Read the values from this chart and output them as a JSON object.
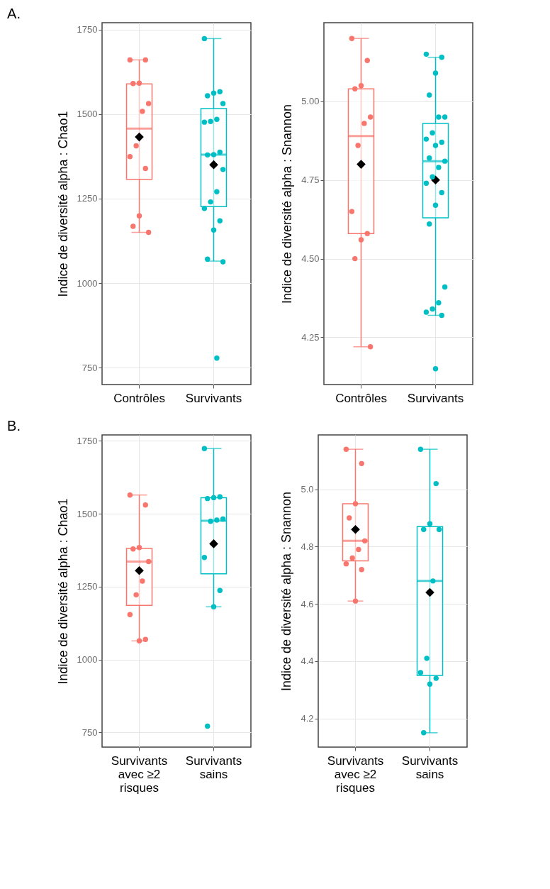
{
  "chart_data": [
    {
      "type": "box",
      "title": "A.",
      "ylabel": "Indice de diversité alpha : Chao1",
      "categories": [
        "Contrôles",
        "Survivants"
      ],
      "ylim": [
        700,
        1770
      ],
      "yticks": [
        750,
        1000,
        1250,
        1500,
        1750
      ],
      "grid": true,
      "marker": "circle",
      "series": [
        {
          "type": "box",
          "colors": [
            "#f8766d",
            "#00bfc4"
          ],
          "boxes": [
            {
              "low": 1150,
              "q1": 1307,
              "median": 1457,
              "q3": 1589,
              "high": 1660,
              "mean": 1432
            },
            {
              "low": 1065,
              "q1": 1226,
              "median": 1380,
              "q3": 1516,
              "high": 1723,
              "mean": 1350
            }
          ]
        },
        {
          "type": "scatter",
          "color": "#f8766d",
          "x": [
            "Contrôles",
            "Contrôles",
            "Contrôles",
            "Contrôles",
            "Contrôles",
            "Contrôles",
            "Contrôles",
            "Contrôles",
            "Contrôles",
            "Contrôles",
            "Contrôles",
            "Contrôles"
          ],
          "values": [
            1660,
            1660,
            1591,
            1590,
            1531,
            1508,
            1406,
            1374,
            1339,
            1199,
            1168,
            1150
          ]
        },
        {
          "type": "scatter",
          "color": "#00bfc4",
          "x": [
            "Survivants",
            "Survivants",
            "Survivants",
            "Survivants",
            "Survivants",
            "Survivants",
            "Survivants",
            "Survivants",
            "Survivants",
            "Survivants",
            "Survivants",
            "Survivants",
            "Survivants",
            "Survivants",
            "Survivants",
            "Survivants",
            "Survivants",
            "Survivants",
            "Survivants",
            "Survivants"
          ],
          "values": [
            1723,
            1566,
            1562,
            1554,
            1531,
            1484,
            1478,
            1476,
            1387,
            1380,
            1379,
            1336,
            1270,
            1240,
            1221,
            1184,
            1157,
            1071,
            1063,
            778
          ]
        }
      ]
    },
    {
      "type": "box",
      "ylabel": "Indice de diversité alpha : Snannon",
      "categories": [
        "Contrôles",
        "Survivants"
      ],
      "ylim": [
        4.1,
        5.25
      ],
      "yticks": [
        {
          "value": 4.25,
          "label": "4.25"
        },
        {
          "value": 4.5,
          "label": "4.50"
        },
        {
          "value": 4.75,
          "label": "4.75"
        },
        {
          "value": 5,
          "label": "5.00"
        }
      ],
      "grid": true,
      "marker": "circle",
      "series": [
        {
          "type": "box",
          "colors": [
            "#f8766d",
            "#00bfc4"
          ],
          "boxes": [
            {
              "low": 4.22,
              "q1": 4.58,
              "median": 4.89,
              "q3": 5.04,
              "high": 5.2,
              "mean": 4.8
            },
            {
              "low": 4.32,
              "q1": 4.63,
              "median": 4.81,
              "q3": 4.93,
              "high": 5.14,
              "mean": 4.75
            }
          ]
        },
        {
          "type": "scatter",
          "color": "#f8766d",
          "x": [
            "Contrôles",
            "Contrôles",
            "Contrôles",
            "Contrôles",
            "Contrôles",
            "Contrôles",
            "Contrôles",
            "Contrôles",
            "Contrôles",
            "Contrôles",
            "Contrôles",
            "Contrôles"
          ],
          "values": [
            5.2,
            5.13,
            5.05,
            5.04,
            4.95,
            4.93,
            4.86,
            4.65,
            4.58,
            4.56,
            4.5,
            4.22
          ]
        },
        {
          "type": "scatter",
          "color": "#00bfc4",
          "x": [
            "Survivants",
            "Survivants",
            "Survivants",
            "Survivants",
            "Survivants",
            "Survivants",
            "Survivants",
            "Survivants",
            "Survivants",
            "Survivants",
            "Survivants",
            "Survivants",
            "Survivants",
            "Survivants",
            "Survivants",
            "Survivants",
            "Survivants",
            "Survivants",
            "Survivants",
            "Survivants",
            "Survivants",
            "Survivants",
            "Survivants",
            "Survivants"
          ],
          "values": [
            5.15,
            5.14,
            5.09,
            5.02,
            4.95,
            4.95,
            4.9,
            4.88,
            4.87,
            4.86,
            4.82,
            4.81,
            4.79,
            4.76,
            4.74,
            4.71,
            4.67,
            4.61,
            4.41,
            4.36,
            4.34,
            4.33,
            4.32,
            4.15
          ]
        }
      ]
    },
    {
      "type": "box",
      "title": "B.",
      "ylabel": "Indice de diversité alpha : Chao1",
      "categories": [
        "Survivants avec ≥2 risques",
        "Survivants sains"
      ],
      "ylim": [
        700,
        1770
      ],
      "yticks": [
        750,
        1000,
        1250,
        1500,
        1750
      ],
      "grid": true,
      "marker": "circle",
      "series": [
        {
          "type": "box",
          "colors": [
            "#f8766d",
            "#00bfc4"
          ],
          "boxes": [
            {
              "low": 1064,
              "q1": 1186,
              "median": 1336,
              "q3": 1381,
              "high": 1564,
              "mean": 1305
            },
            {
              "low": 1181,
              "q1": 1294,
              "median": 1476,
              "q3": 1555,
              "high": 1723,
              "mean": 1397
            }
          ]
        },
        {
          "type": "scatter",
          "color": "#f8766d",
          "x": [
            "Survivants avec ≥2 risques",
            "Survivants avec ≥2 risques",
            "Survivants avec ≥2 risques",
            "Survivants avec ≥2 risques",
            "Survivants avec ≥2 risques",
            "Survivants avec ≥2 risques",
            "Survivants avec ≥2 risques",
            "Survivants avec ≥2 risques",
            "Survivants avec ≥2 risques",
            "Survivants avec ≥2 risques"
          ],
          "values": [
            1564,
            1530,
            1384,
            1379,
            1336,
            1269,
            1222,
            1154,
            1069,
            1064
          ]
        },
        {
          "type": "scatter",
          "color": "#00bfc4",
          "x": [
            "Survivants sains",
            "Survivants sains",
            "Survivants sains",
            "Survivants sains",
            "Survivants sains",
            "Survivants sains",
            "Survivants sains",
            "Survivants sains",
            "Survivants sains",
            "Survivants sains",
            "Survivants sains"
          ],
          "values": [
            1723,
            1558,
            1555,
            1552,
            1482,
            1478,
            1474,
            1350,
            1237,
            1181,
            772
          ]
        }
      ]
    },
    {
      "type": "box",
      "ylabel": "Indice de diversité alpha : Snannon",
      "categories": [
        "Survivants avec ≥2 risques",
        "Survivants sains"
      ],
      "ylim": [
        4.1,
        5.19
      ],
      "yticks": [
        4.2,
        4.4,
        4.6,
        4.8,
        {
          "value": 5,
          "label": "5.0"
        }
      ],
      "grid": true,
      "marker": "circle",
      "series": [
        {
          "type": "box",
          "colors": [
            "#f8766d",
            "#00bfc4"
          ],
          "boxes": [
            {
              "low": 4.61,
              "q1": 4.75,
              "median": 4.82,
              "q3": 4.95,
              "high": 5.14,
              "mean": 4.86
            },
            {
              "low": 4.15,
              "q1": 4.35,
              "median": 4.68,
              "q3": 4.87,
              "high": 5.14,
              "mean": 4.64
            }
          ]
        },
        {
          "type": "scatter",
          "color": "#f8766d",
          "x": [
            "Survivants avec ≥2 risques",
            "Survivants avec ≥2 risques",
            "Survivants avec ≥2 risques",
            "Survivants avec ≥2 risques",
            "Survivants avec ≥2 risques",
            "Survivants avec ≥2 risques",
            "Survivants avec ≥2 risques",
            "Survivants avec ≥2 risques",
            "Survivants avec ≥2 risques",
            "Survivants avec ≥2 risques"
          ],
          "values": [
            5.14,
            5.09,
            4.95,
            4.9,
            4.82,
            4.79,
            4.76,
            4.74,
            4.72,
            4.61
          ]
        },
        {
          "type": "scatter",
          "color": "#00bfc4",
          "x": [
            "Survivants sains",
            "Survivants sains",
            "Survivants sains",
            "Survivants sains",
            "Survivants sains",
            "Survivants sains",
            "Survivants sains",
            "Survivants sains",
            "Survivants sains",
            "Survivants sains",
            "Survivants sains"
          ],
          "values": [
            5.14,
            5.02,
            4.88,
            4.86,
            4.86,
            4.68,
            4.41,
            4.36,
            4.34,
            4.32,
            4.15
          ]
        }
      ]
    }
  ]
}
